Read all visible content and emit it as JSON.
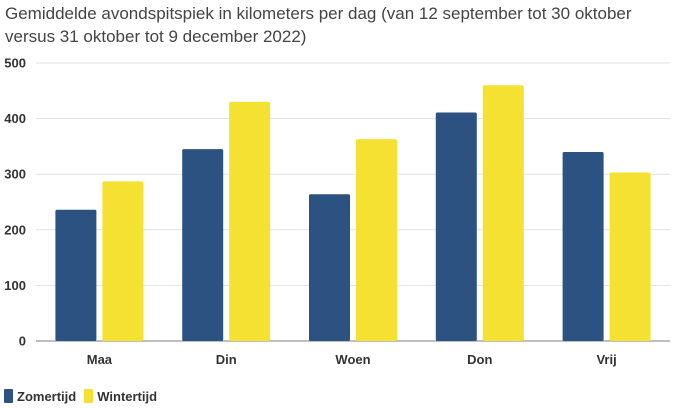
{
  "chart_data": {
    "type": "bar",
    "title": "Gemiddelde avondspitspiek in kilometers per dag (van 12 september tot 30 oktober versus 31 oktober tot 9 december 2022)",
    "xlabel": "",
    "ylabel": "",
    "categories": [
      "Maa",
      "Din",
      "Woen",
      "Don",
      "Vrij"
    ],
    "series": [
      {
        "name": "Zomertijd",
        "color": "#2c5282",
        "values": [
          236,
          345,
          264,
          411,
          340
        ]
      },
      {
        "name": "Wintertijd",
        "color": "#f5e132",
        "values": [
          287,
          430,
          363,
          460,
          303
        ]
      }
    ],
    "ylim": [
      0,
      500
    ],
    "yticks": [
      0,
      100,
      200,
      300,
      400,
      500
    ],
    "grid": true,
    "legend": "bottom-left"
  }
}
